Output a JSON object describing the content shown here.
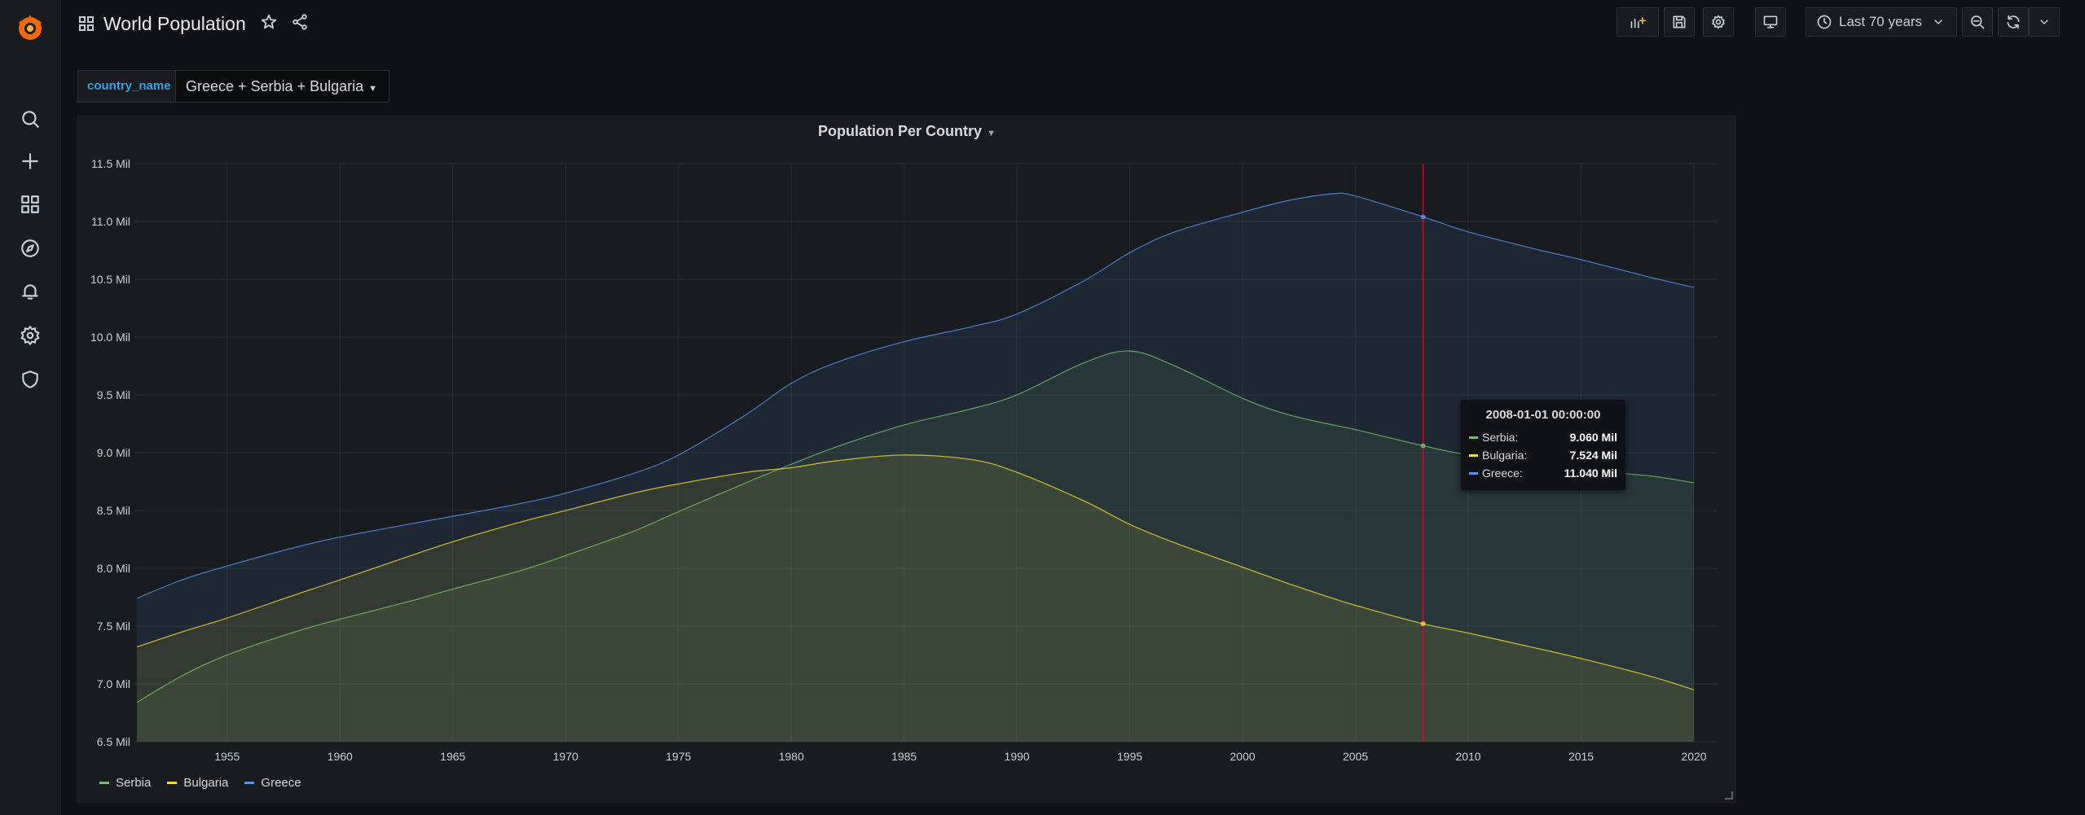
{
  "header": {
    "title": "World Population",
    "time_range": "Last 70 years"
  },
  "sidebar": {
    "items": [
      {
        "icon": "search-icon"
      },
      {
        "icon": "plus-icon"
      },
      {
        "icon": "dashboards-icon"
      },
      {
        "icon": "explore-compass-icon"
      },
      {
        "icon": "alerting-bell-icon"
      },
      {
        "icon": "configuration-gear-icon"
      },
      {
        "icon": "server-admin-shield-icon"
      }
    ]
  },
  "variables": {
    "label": "country_name",
    "value": "Greece + Serbia + Bulgaria"
  },
  "panel": {
    "title": "Population Per Country"
  },
  "tooltip": {
    "time": "2008-01-01 00:00:00",
    "rows": [
      {
        "name": "Serbia:",
        "value": "9.060 Mil",
        "color": "#73bf69"
      },
      {
        "name": "Bulgaria:",
        "value": "7.524 Mil",
        "color": "#fade2a"
      },
      {
        "name": "Greece:",
        "value": "11.040 Mil",
        "color": "#5794f2"
      }
    ]
  },
  "colors": {
    "serbia": "#73bf69",
    "bulgaria": "#fade2a",
    "greece": "#5794f2",
    "crosshair": "#c4162a"
  },
  "chart_data": {
    "type": "area",
    "title": "Population Per Country",
    "ylim": [
      6.5,
      11.5
    ],
    "xlim": [
      1951,
      2020
    ],
    "yticks": [
      "6.5 Mil",
      "7.0 Mil",
      "7.5 Mil",
      "8.0 Mil",
      "8.5 Mil",
      "9.0 Mil",
      "9.5 Mil",
      "10.0 Mil",
      "10.5 Mil",
      "11.0 Mil",
      "11.5 Mil"
    ],
    "ytick_values": [
      6.5,
      7.0,
      7.5,
      8.0,
      8.5,
      9.0,
      9.5,
      10.0,
      10.5,
      11.0,
      11.5
    ],
    "xticks": [
      "1955",
      "1960",
      "1965",
      "1970",
      "1975",
      "1980",
      "1985",
      "1990",
      "1995",
      "2000",
      "2005",
      "2010",
      "2015",
      "2020"
    ],
    "xtick_values": [
      1955,
      1960,
      1965,
      1970,
      1975,
      1980,
      1985,
      1990,
      1995,
      2000,
      2005,
      2010,
      2015,
      2020
    ],
    "crosshair_x": 2008,
    "grid": true,
    "legend_position": "bottom-left",
    "x": [
      1951,
      1953,
      1955,
      1958,
      1960,
      1963,
      1965,
      1968,
      1970,
      1973,
      1975,
      1978,
      1980,
      1982,
      1985,
      1988,
      1990,
      1993,
      1995,
      1997,
      2000,
      2002,
      2004,
      2005,
      2008,
      2010,
      2013,
      2015,
      2018,
      2020
    ],
    "series": [
      {
        "name": "Serbia",
        "color": "#73bf69",
        "values": [
          6.84,
          7.07,
          7.25,
          7.45,
          7.56,
          7.71,
          7.82,
          7.98,
          8.11,
          8.32,
          8.49,
          8.74,
          8.9,
          9.05,
          9.24,
          9.38,
          9.5,
          9.78,
          9.88,
          9.75,
          9.47,
          9.33,
          9.24,
          9.2,
          9.06,
          8.98,
          8.9,
          8.85,
          8.8,
          8.74
        ]
      },
      {
        "name": "Bulgaria",
        "color": "#fade2a",
        "values": [
          7.32,
          7.45,
          7.57,
          7.77,
          7.9,
          8.1,
          8.23,
          8.4,
          8.5,
          8.65,
          8.73,
          8.83,
          8.87,
          8.93,
          8.98,
          8.94,
          8.83,
          8.58,
          8.38,
          8.22,
          8.01,
          7.87,
          7.74,
          7.68,
          7.52,
          7.44,
          7.31,
          7.22,
          7.07,
          6.95
        ]
      },
      {
        "name": "Greece",
        "color": "#5794f2",
        "values": [
          7.74,
          7.9,
          8.02,
          8.18,
          8.27,
          8.38,
          8.45,
          8.56,
          8.65,
          8.82,
          8.98,
          9.33,
          9.6,
          9.78,
          9.96,
          10.09,
          10.2,
          10.49,
          10.73,
          10.91,
          11.08,
          11.18,
          11.24,
          11.22,
          11.04,
          10.91,
          10.76,
          10.67,
          10.52,
          10.43
        ]
      }
    ]
  }
}
